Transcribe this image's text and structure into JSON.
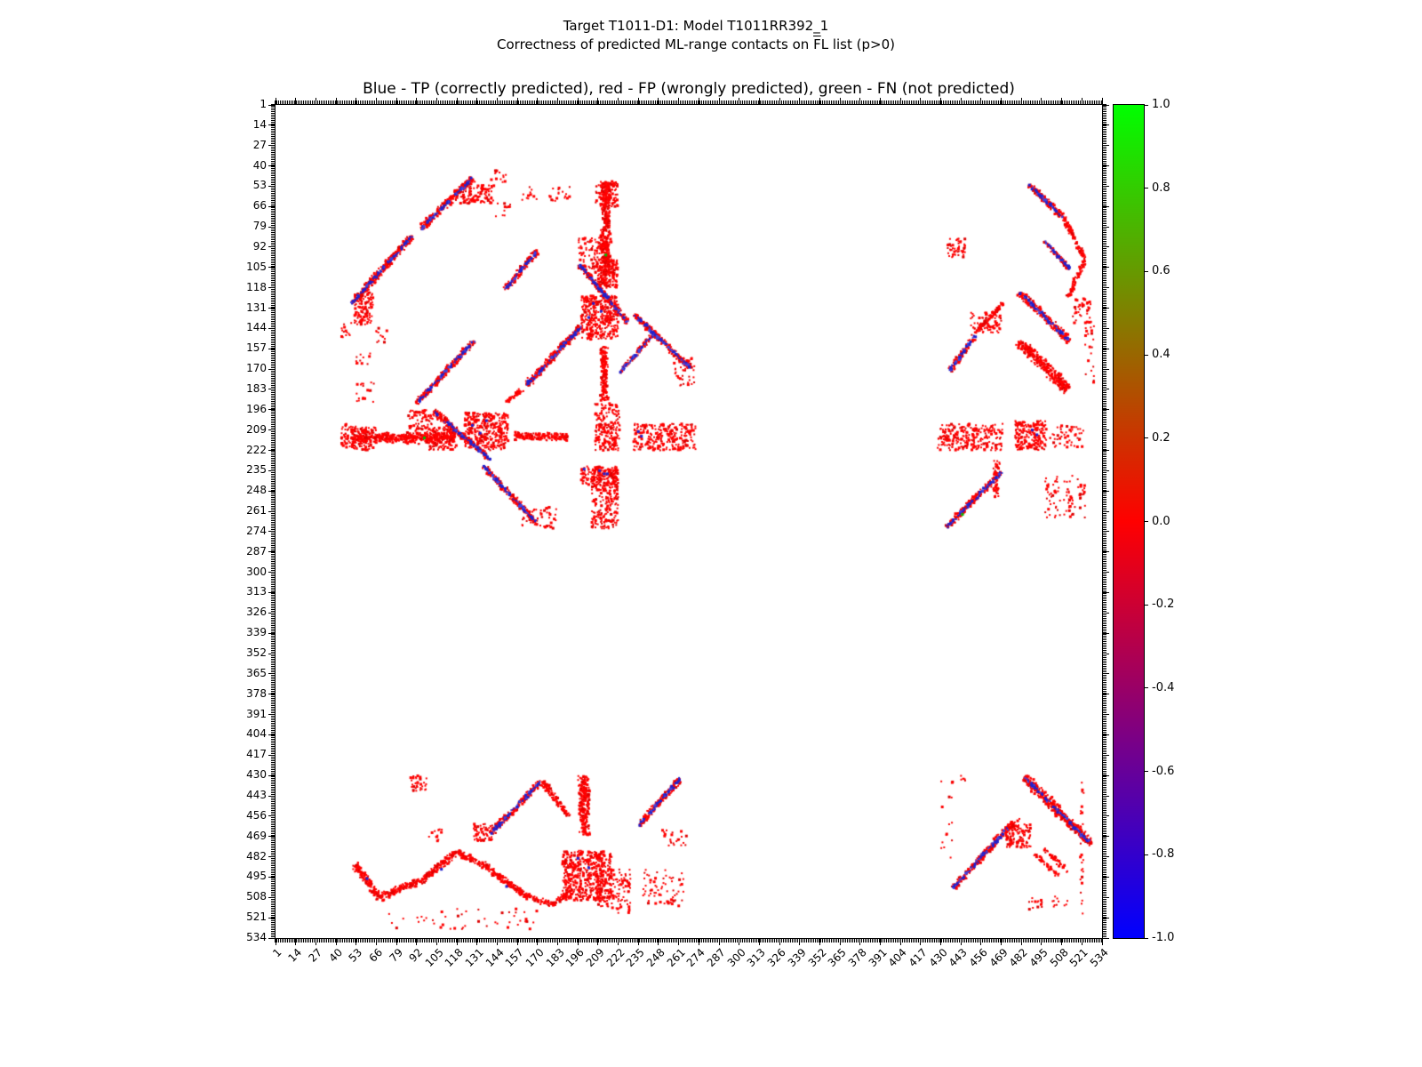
{
  "figure": {
    "title_line1": "Target T1011-D1: Model T1011RR392_1",
    "t2_prefix": "Correctness of predicted ML-range contacts on ",
    "t2_overline": "F",
    "t2_suffix": "L list (p>0)",
    "axes_title": "Blue - TP (correctly predicted), red - FP (wrongly predicted), green - FN (not predicted)"
  },
  "chart_data": {
    "type": "scatter",
    "subtype": "residue-residue-contact-map",
    "x_range": [
      1,
      534
    ],
    "y_range": [
      1,
      534
    ],
    "y_inverted": true,
    "grid": false,
    "x_ticks": [
      1,
      14,
      27,
      40,
      53,
      66,
      79,
      92,
      105,
      118,
      131,
      144,
      157,
      170,
      183,
      196,
      209,
      222,
      235,
      248,
      261,
      274,
      287,
      300,
      313,
      326,
      339,
      352,
      365,
      378,
      391,
      404,
      417,
      430,
      443,
      456,
      469,
      482,
      495,
      508,
      521,
      534
    ],
    "y_ticks": [
      1,
      14,
      27,
      40,
      53,
      66,
      79,
      92,
      105,
      118,
      131,
      144,
      157,
      170,
      183,
      196,
      209,
      222,
      235,
      248,
      261,
      274,
      287,
      300,
      313,
      326,
      339,
      352,
      365,
      378,
      391,
      404,
      417,
      430,
      443,
      456,
      469,
      482,
      495,
      508,
      521,
      534
    ],
    "classes": {
      "TP": {
        "color": "#2222cc",
        "meaning": "correctly predicted"
      },
      "FP": {
        "color": "#ff0000",
        "meaning": "wrongly predicted"
      },
      "FN": {
        "color": "#00bb00",
        "meaning": "not predicted"
      }
    },
    "colorbar": {
      "min": -1.0,
      "max": 1.0,
      "tick_labels": [
        "1.0",
        "0.8",
        "0.6",
        "0.4",
        "0.2",
        "0.0",
        "-0.2",
        "-0.4",
        "-0.6",
        "-0.8",
        "-1.0"
      ],
      "gradient": [
        {
          "v": 1.0,
          "c": "#00ff00"
        },
        {
          "v": 0.5,
          "c": "#808000"
        },
        {
          "v": 0.0,
          "c": "#ff0000"
        },
        {
          "v": -0.5,
          "c": "#800080"
        },
        {
          "v": -1.0,
          "c": "#0000ff"
        }
      ]
    },
    "features": {
      "segments": [
        [
          128,
          48,
          95,
          80,
          6,
          1,
          "mixed",
          0
        ],
        [
          89,
          85,
          50,
          128,
          6,
          1,
          "mixed",
          0
        ],
        [
          170,
          94,
          149,
          119,
          5,
          1,
          "mixed",
          0
        ],
        [
          198,
          143,
          163,
          180,
          6,
          1,
          "mixed",
          0
        ],
        [
          160,
          183,
          150,
          191,
          4,
          0.8,
          "red",
          0
        ],
        [
          129,
          152,
          92,
          192,
          5,
          0.9,
          "mixed",
          0
        ],
        [
          103,
          197,
          140,
          228,
          5,
          1,
          "mixed",
          1
        ],
        [
          246,
          146,
          223,
          172,
          4,
          0.8,
          "mixed",
          0
        ],
        [
          135,
          232,
          169,
          268,
          5,
          1,
          "mixed",
          1
        ],
        [
          214,
          50,
          214,
          117,
          8,
          0.85,
          "red",
          1
        ],
        [
          213,
          155,
          213,
          190,
          7,
          0.8,
          "red",
          1
        ],
        [
          487,
          52,
          509,
          73,
          5,
          1,
          "mixed",
          0
        ],
        [
          509,
          73,
          523,
          100,
          4,
          0.9,
          "red",
          0
        ],
        [
          523,
          100,
          512,
          124,
          4,
          0.8,
          "red",
          0
        ],
        [
          497,
          88,
          513,
          106,
          4,
          0.9,
          "mixed",
          0
        ],
        [
          481,
          121,
          513,
          152,
          6,
          1,
          "mixed",
          0
        ],
        [
          470,
          128,
          452,
          147,
          4,
          0.8,
          "red",
          0
        ],
        [
          452,
          149,
          436,
          171,
          5,
          0.9,
          "mixed",
          0
        ],
        [
          480,
          152,
          512,
          183,
          9,
          1,
          "red",
          0
        ],
        [
          434,
          271,
          469,
          236,
          5,
          1,
          "mixed",
          0
        ],
        [
          466,
          228,
          466,
          252,
          5,
          0.5,
          "red",
          0
        ],
        [
          140,
          467,
          172,
          434,
          5,
          1,
          "mixed",
          0
        ],
        [
          173,
          434,
          190,
          456,
          5,
          0.9,
          "red",
          0
        ],
        [
          200,
          430,
          200,
          468,
          9,
          0.9,
          "red",
          0
        ],
        [
          235,
          462,
          262,
          432,
          5,
          1,
          "mixed",
          0
        ],
        [
          52,
          487,
          68,
          508,
          6,
          1,
          "red",
          0
        ],
        [
          68,
          508,
          95,
          497,
          6,
          0.95,
          "red",
          0
        ],
        [
          95,
          497,
          118,
          479,
          6,
          0.95,
          "red",
          0
        ],
        [
          118,
          479,
          138,
          489,
          6,
          0.9,
          "red",
          0
        ],
        [
          138,
          489,
          162,
          507,
          6,
          0.95,
          "red",
          0
        ],
        [
          162,
          507,
          180,
          513,
          5,
          0.85,
          "red",
          0
        ],
        [
          180,
          513,
          192,
          502,
          5,
          0.8,
          "red",
          0
        ],
        [
          484,
          431,
          527,
          474,
          8,
          1,
          "mixed",
          0
        ],
        [
          438,
          502,
          473,
          464,
          5,
          1,
          "mixed",
          0
        ],
        [
          473,
          464,
          481,
          457,
          4,
          0.8,
          "red",
          0
        ],
        [
          490,
          480,
          506,
          494,
          4,
          0.7,
          "red",
          0
        ],
        [
          496,
          477,
          512,
          491,
          4,
          0.6,
          "red",
          0
        ],
        [
          521,
          432,
          521,
          528,
          3,
          0.12,
          "red",
          0
        ]
      ],
      "blobs": [
        [
          120,
          52,
          22,
          12,
          0.8,
          1
        ],
        [
          207,
          50,
          15,
          16,
          0.9,
          1
        ],
        [
          207,
          100,
          15,
          18,
          0.85,
          1
        ],
        [
          196,
          86,
          22,
          20,
          0.5,
          1
        ],
        [
          198,
          123,
          24,
          28,
          0.95,
          1
        ],
        [
          258,
          160,
          14,
          22,
          0.3,
          1
        ],
        [
          207,
          192,
          16,
          30,
          0.85,
          0
        ],
        [
          232,
          205,
          40,
          17,
          0.7,
          1
        ],
        [
          198,
          232,
          23,
          12,
          0.8,
          0
        ],
        [
          143,
          64,
          10,
          9,
          0.25,
          1
        ],
        [
          177,
          53,
          14,
          12,
          0.2,
          1
        ],
        [
          160,
          53,
          10,
          10,
          0.2,
          1
        ],
        [
          43,
          140,
          8,
          10,
          0.3,
          1
        ],
        [
          43,
          205,
          10,
          15,
          0.7,
          0
        ],
        [
          434,
          86,
          12,
          13,
          0.6,
          0
        ],
        [
          449,
          133,
          20,
          14,
          0.6,
          0
        ],
        [
          515,
          125,
          12,
          16,
          0.4,
          0
        ],
        [
          523,
          140,
          6,
          40,
          0.15,
          0
        ],
        [
          428,
          205,
          42,
          17,
          0.65,
          0
        ],
        [
          478,
          203,
          20,
          19,
          0.95,
          0
        ],
        [
          500,
          206,
          22,
          14,
          0.3,
          0
        ],
        [
          497,
          238,
          26,
          27,
          0.22,
          0
        ],
        [
          88,
          430,
          11,
          10,
          0.6,
          0
        ],
        [
          128,
          461,
          13,
          11,
          0.85,
          0
        ],
        [
          100,
          464,
          10,
          8,
          0.3,
          0
        ],
        [
          186,
          478,
          26,
          32,
          0.95,
          0
        ],
        [
          208,
          478,
          10,
          36,
          0.7,
          0
        ],
        [
          216,
          490,
          14,
          28,
          0.4,
          0
        ],
        [
          238,
          490,
          26,
          24,
          0.2,
          0
        ],
        [
          70,
          515,
          100,
          14,
          0.06,
          0
        ],
        [
          250,
          465,
          16,
          10,
          0.25,
          0
        ],
        [
          472,
          461,
          16,
          15,
          0.9,
          0
        ],
        [
          486,
          508,
          10,
          8,
          0.3,
          0
        ],
        [
          502,
          506,
          10,
          8,
          0.25,
          0
        ],
        [
          443,
          430,
          5,
          5,
          0.4,
          0
        ],
        [
          430,
          430,
          8,
          55,
          0.06,
          0
        ]
      ],
      "tp_points": [
        [
          206,
          128,
          1
        ],
        [
          211,
          133,
          1
        ],
        [
          203,
          137,
          1
        ],
        [
          235,
          210,
          1
        ],
        [
          237,
          213,
          1
        ],
        [
          200,
          234,
          0
        ],
        [
          215,
          237,
          0
        ],
        [
          489,
          209,
          0
        ],
        [
          492,
          212,
          0
        ],
        [
          196,
          483,
          0
        ],
        [
          203,
          489,
          0
        ],
        [
          60,
          496,
          0
        ],
        [
          108,
          490,
          0
        ],
        [
          150,
          501,
          0
        ]
      ],
      "fn_points": [
        [
          97,
          214,
          1
        ],
        [
          444,
          263,
          0
        ]
      ]
    }
  }
}
